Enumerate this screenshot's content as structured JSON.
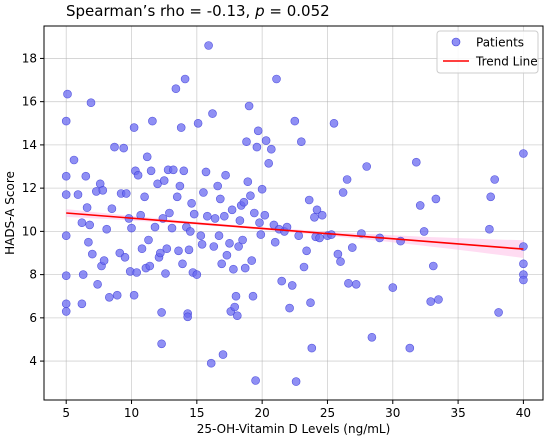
{
  "chart_data": {
    "type": "scatter",
    "title_prefix": "Spearman’s rho = -0.13, ",
    "title_p_symbol": "p",
    "title_suffix": " = 0.052",
    "xlabel": "25-OH-Vitamin D Levels (ng/mL)",
    "ylabel": "HADS-A Score",
    "xlim": [
      3.3,
      41.5
    ],
    "ylim": [
      2.2,
      19.5
    ],
    "xticks": [
      5,
      10,
      15,
      20,
      25,
      30,
      35,
      40
    ],
    "yticks": [
      4,
      6,
      8,
      10,
      12,
      14,
      16,
      18
    ],
    "grid": true,
    "legend_position": "top-right",
    "legend": {
      "patients_label": "Patients",
      "trend_label": "Trend Line"
    },
    "colors": {
      "points": "#6a6af0",
      "points_edge": "#3b3bd8",
      "trend": "#ff0000",
      "band": "#ffc0e8",
      "grid": "#b0b0b0"
    },
    "trend_line": {
      "x": [
        5.0,
        40.0
      ],
      "y": [
        10.85,
        9.18
      ]
    },
    "series": [
      {
        "name": "Patients",
        "points": [
          [
            5.0,
            15.1
          ],
          [
            5.1,
            16.35
          ],
          [
            5.0,
            12.55
          ],
          [
            5.0,
            11.7
          ],
          [
            5.0,
            9.8
          ],
          [
            5.0,
            7.95
          ],
          [
            5.0,
            6.65
          ],
          [
            5.0,
            6.3
          ],
          [
            5.6,
            13.3
          ],
          [
            5.9,
            11.7
          ],
          [
            6.2,
            10.4
          ],
          [
            6.3,
            8.0
          ],
          [
            6.2,
            6.65
          ],
          [
            6.5,
            12.55
          ],
          [
            6.6,
            11.1
          ],
          [
            6.7,
            9.5
          ],
          [
            6.8,
            10.3
          ],
          [
            6.9,
            15.95
          ],
          [
            7.0,
            8.95
          ],
          [
            7.3,
            11.85
          ],
          [
            7.4,
            7.55
          ],
          [
            7.6,
            12.2
          ],
          [
            7.7,
            8.4
          ],
          [
            7.8,
            11.9
          ],
          [
            7.9,
            8.65
          ],
          [
            8.1,
            10.1
          ],
          [
            8.3,
            6.95
          ],
          [
            8.5,
            11.05
          ],
          [
            8.7,
            13.9
          ],
          [
            8.9,
            7.05
          ],
          [
            9.1,
            9.0
          ],
          [
            9.2,
            11.75
          ],
          [
            9.4,
            13.85
          ],
          [
            9.5,
            8.8
          ],
          [
            9.6,
            11.75
          ],
          [
            9.8,
            10.6
          ],
          [
            9.9,
            8.15
          ],
          [
            10.0,
            10.15
          ],
          [
            10.2,
            7.05
          ],
          [
            10.2,
            14.8
          ],
          [
            10.3,
            12.8
          ],
          [
            10.4,
            8.1
          ],
          [
            10.5,
            12.6
          ],
          [
            10.7,
            10.75
          ],
          [
            10.8,
            9.2
          ],
          [
            11.0,
            11.6
          ],
          [
            11.1,
            8.3
          ],
          [
            11.2,
            13.45
          ],
          [
            11.3,
            9.6
          ],
          [
            11.4,
            8.4
          ],
          [
            11.5,
            12.8
          ],
          [
            11.6,
            15.1
          ],
          [
            11.8,
            10.2
          ],
          [
            12.0,
            12.2
          ],
          [
            12.1,
            8.8
          ],
          [
            12.2,
            9.0
          ],
          [
            12.3,
            6.25
          ],
          [
            12.3,
            4.8
          ],
          [
            12.4,
            10.6
          ],
          [
            12.5,
            12.35
          ],
          [
            12.6,
            8.05
          ],
          [
            12.7,
            9.2
          ],
          [
            12.8,
            12.85
          ],
          [
            12.9,
            10.85
          ],
          [
            13.1,
            10.15
          ],
          [
            13.2,
            12.85
          ],
          [
            13.4,
            16.6
          ],
          [
            13.5,
            11.6
          ],
          [
            13.6,
            9.1
          ],
          [
            13.7,
            12.1
          ],
          [
            13.8,
            14.8
          ],
          [
            13.9,
            8.5
          ],
          [
            14.0,
            12.8
          ],
          [
            14.1,
            17.05
          ],
          [
            14.2,
            10.2
          ],
          [
            14.3,
            6.2
          ],
          [
            14.3,
            6.05
          ],
          [
            14.4,
            9.15
          ],
          [
            14.5,
            10.0
          ],
          [
            14.6,
            11.3
          ],
          [
            14.7,
            8.1
          ],
          [
            14.8,
            10.8
          ],
          [
            15.0,
            8.0
          ],
          [
            15.1,
            15.0
          ],
          [
            15.3,
            9.8
          ],
          [
            15.4,
            9.4
          ],
          [
            15.5,
            11.8
          ],
          [
            15.7,
            12.75
          ],
          [
            15.8,
            10.7
          ],
          [
            15.9,
            18.6
          ],
          [
            16.1,
            3.9
          ],
          [
            16.2,
            15.45
          ],
          [
            16.3,
            9.3
          ],
          [
            16.4,
            10.6
          ],
          [
            16.6,
            12.1
          ],
          [
            16.7,
            9.8
          ],
          [
            16.8,
            11.5
          ],
          [
            16.9,
            8.5
          ],
          [
            17.0,
            4.3
          ],
          [
            17.1,
            10.7
          ],
          [
            17.2,
            12.6
          ],
          [
            17.3,
            8.9
          ],
          [
            17.5,
            9.45
          ],
          [
            17.6,
            6.3
          ],
          [
            17.7,
            11.0
          ],
          [
            17.8,
            8.25
          ],
          [
            17.9,
            6.5
          ],
          [
            18.0,
            7.0
          ],
          [
            18.1,
            6.1
          ],
          [
            18.2,
            9.3
          ],
          [
            18.3,
            10.5
          ],
          [
            18.4,
            11.2
          ],
          [
            18.5,
            9.6
          ],
          [
            18.6,
            11.35
          ],
          [
            18.7,
            8.3
          ],
          [
            18.8,
            14.15
          ],
          [
            18.9,
            12.3
          ],
          [
            19.0,
            15.8
          ],
          [
            19.1,
            11.65
          ],
          [
            19.2,
            8.65
          ],
          [
            19.3,
            7.0
          ],
          [
            19.4,
            10.85
          ],
          [
            19.5,
            3.1
          ],
          [
            19.6,
            13.9
          ],
          [
            19.7,
            14.65
          ],
          [
            19.8,
            10.4
          ],
          [
            19.9,
            9.85
          ],
          [
            20.0,
            11.95
          ],
          [
            20.2,
            10.75
          ],
          [
            20.3,
            14.2
          ],
          [
            20.5,
            13.15
          ],
          [
            20.7,
            13.8
          ],
          [
            20.9,
            10.3
          ],
          [
            21.0,
            9.5
          ],
          [
            21.1,
            17.05
          ],
          [
            21.3,
            10.1
          ],
          [
            21.5,
            7.7
          ],
          [
            21.7,
            10.0
          ],
          [
            21.9,
            10.2
          ],
          [
            22.1,
            6.45
          ],
          [
            22.3,
            7.5
          ],
          [
            22.5,
            15.1
          ],
          [
            22.6,
            3.05
          ],
          [
            22.8,
            9.8
          ],
          [
            23.0,
            14.15
          ],
          [
            23.2,
            8.35
          ],
          [
            23.4,
            9.1
          ],
          [
            23.6,
            11.45
          ],
          [
            23.7,
            6.7
          ],
          [
            23.8,
            4.6
          ],
          [
            24.0,
            10.65
          ],
          [
            24.1,
            9.75
          ],
          [
            24.2,
            11.0
          ],
          [
            24.4,
            9.7
          ],
          [
            24.6,
            10.75
          ],
          [
            25.0,
            9.8
          ],
          [
            25.3,
            9.85
          ],
          [
            25.5,
            15.0
          ],
          [
            25.8,
            8.95
          ],
          [
            26.0,
            8.6
          ],
          [
            26.2,
            11.8
          ],
          [
            26.5,
            12.4
          ],
          [
            26.6,
            7.6
          ],
          [
            26.9,
            9.25
          ],
          [
            27.2,
            7.55
          ],
          [
            27.6,
            9.9
          ],
          [
            28.0,
            13.0
          ],
          [
            28.4,
            5.1
          ],
          [
            29.0,
            9.7
          ],
          [
            30.0,
            7.4
          ],
          [
            30.6,
            9.55
          ],
          [
            31.3,
            4.6
          ],
          [
            31.8,
            13.2
          ],
          [
            32.1,
            11.2
          ],
          [
            32.4,
            10.0
          ],
          [
            32.9,
            6.75
          ],
          [
            33.1,
            8.4
          ],
          [
            33.3,
            11.5
          ],
          [
            33.5,
            6.85
          ],
          [
            37.4,
            10.1
          ],
          [
            37.5,
            11.6
          ],
          [
            37.8,
            12.4
          ],
          [
            38.1,
            6.25
          ],
          [
            40.0,
            13.6
          ],
          [
            40.0,
            9.3
          ],
          [
            40.0,
            8.5
          ],
          [
            40.0,
            8.0
          ],
          [
            40.0,
            7.75
          ]
        ]
      }
    ]
  }
}
